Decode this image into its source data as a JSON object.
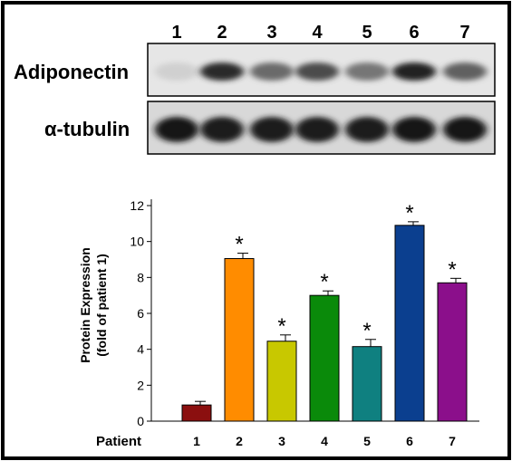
{
  "blot": {
    "lane_labels": [
      "1",
      "2",
      "3",
      "4",
      "5",
      "6",
      "7"
    ],
    "rows": [
      {
        "label": "Adiponectin",
        "intensities": [
          0.08,
          0.85,
          0.55,
          0.7,
          0.5,
          0.9,
          0.6
        ]
      },
      {
        "label": "α-tubulin",
        "intensities": [
          0.95,
          0.92,
          0.92,
          0.92,
          0.92,
          0.93,
          0.93
        ]
      }
    ]
  },
  "chart_data": {
    "type": "bar",
    "xlabel": "Patient",
    "ylabel_lines": [
      "Protein Expression",
      "(fold of patient 1)"
    ],
    "categories": [
      "1",
      "2",
      "3",
      "4",
      "5",
      "6",
      "7"
    ],
    "values": [
      0.9,
      9.05,
      4.45,
      7.0,
      4.15,
      10.9,
      7.7
    ],
    "errors": [
      0.2,
      0.3,
      0.35,
      0.25,
      0.4,
      0.2,
      0.25
    ],
    "significance": [
      "",
      "*",
      "*",
      "*",
      "*",
      "*",
      "*"
    ],
    "colors": [
      "#8b0f0f",
      "#ff8c00",
      "#c8c800",
      "#0a8a0a",
      "#0f8080",
      "#0b3f8f",
      "#8b0f8b"
    ],
    "ylim": [
      0,
      12
    ],
    "yticks": [
      0,
      2,
      4,
      6,
      8,
      10,
      12
    ]
  }
}
